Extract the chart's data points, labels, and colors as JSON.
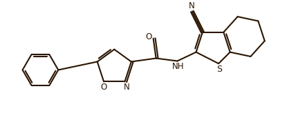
{
  "bg_color": "#ffffff",
  "line_color": "#2a1500",
  "line_width": 1.5,
  "font_size": 8.5,
  "figsize": [
    4.15,
    1.77
  ],
  "dpi": 100,
  "xlim": [
    0,
    8.3
  ],
  "ylim": [
    0,
    3.54
  ]
}
